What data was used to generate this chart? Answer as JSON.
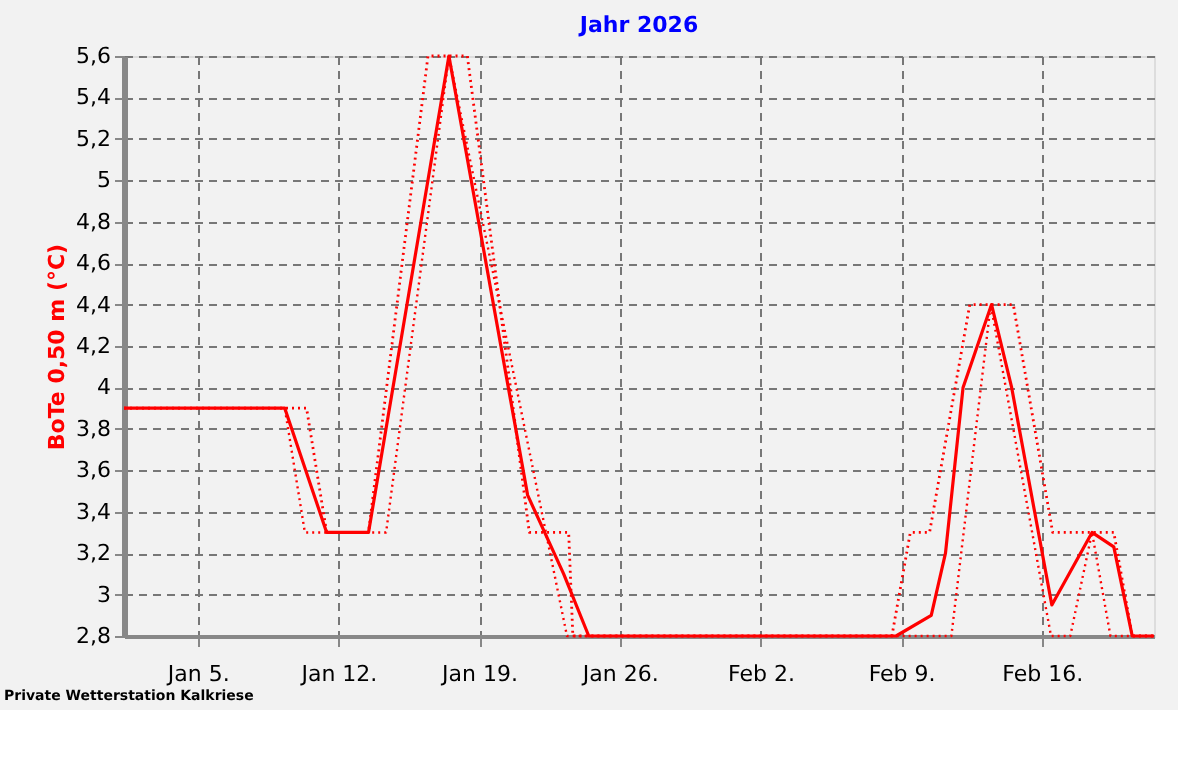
{
  "chart_data": {
    "type": "line",
    "title": "Jahr 2026",
    "ylabel": "BoTe 0,50 m (°C)",
    "annotations": [
      "Private Wetterstation Kalkriese"
    ],
    "series": [
      {
        "color": "#ff0000",
        "line_style": "solid",
        "x": [
          "2026-01-01T08:00",
          "2026-01-09T08:00",
          "2026-01-11T10:00",
          "2026-01-13T12:00",
          "2026-01-17T12:00",
          "2026-01-21T10:00",
          "2026-01-23T05:00",
          "2026-01-24T11:00",
          "2026-02-08T18:00",
          "2026-02-10T12:00",
          "2026-02-11T05:00",
          "2026-02-12T02:00",
          "2026-02-13T12:00",
          "2026-02-14T12:00",
          "2026-02-16T12:00",
          "2026-02-18T12:00",
          "2026-02-19T14:00",
          "2026-02-20T12:00",
          "2026-02-21T14:00"
        ],
        "values": [
          3.9,
          3.9,
          3.3,
          3.3,
          5.6,
          3.48,
          3.1,
          2.8,
          2.8,
          2.9,
          3.2,
          4.0,
          4.4,
          4.0,
          2.95,
          3.3,
          3.23,
          2.8,
          2.8
        ]
      },
      {
        "color": "#ff0000",
        "line_style": "dotted",
        "x": [
          "2026-01-01T08:00",
          "2026-01-10T10:00",
          "2026-01-11T10:00",
          "2026-01-13T12:00",
          "2026-01-16T11:00",
          "2026-01-18T10:00",
          "2026-01-21T12:00",
          "2026-01-23T11:00",
          "2026-01-23T16:00",
          "2026-02-08T13:00",
          "2026-02-09T11:00",
          "2026-02-10T10:00",
          "2026-02-12T10:00",
          "2026-02-14T14:00",
          "2026-02-16T13:00",
          "2026-02-19T14:00",
          "2026-02-20T12:00",
          "2026-02-21T14:00"
        ],
        "values": [
          3.9,
          3.9,
          3.3,
          3.3,
          5.6,
          5.6,
          3.3,
          3.3,
          2.8,
          2.8,
          3.3,
          3.3,
          4.4,
          4.4,
          3.3,
          3.3,
          2.8,
          2.8
        ]
      },
      {
        "color": "#ff0000",
        "line_style": "dotted",
        "x": [
          "2026-01-01T08:00",
          "2026-01-09T08:00",
          "2026-01-10T08:00",
          "2026-01-14T09:00",
          "2026-01-17T12:00",
          "2026-01-23T09:00",
          "2026-02-11T12:00",
          "2026-02-13T11:00",
          "2026-02-16T11:00",
          "2026-02-17T10:00",
          "2026-02-18T12:00",
          "2026-02-19T10:00",
          "2026-02-21T14:00"
        ],
        "values": [
          3.9,
          3.9,
          3.3,
          3.3,
          5.6,
          2.8,
          2.8,
          4.4,
          2.8,
          2.8,
          3.3,
          2.8,
          2.8
        ]
      }
    ],
    "xlim": [
      "2026-01-01T08:00",
      "2026-02-21T14:00"
    ],
    "xticks": [
      {
        "value": "2026-01-05",
        "label": "Jan 5."
      },
      {
        "value": "2026-01-12",
        "label": "Jan 12."
      },
      {
        "value": "2026-01-19",
        "label": "Jan 19."
      },
      {
        "value": "2026-01-26",
        "label": "Jan 26."
      },
      {
        "value": "2026-02-02",
        "label": "Feb 2."
      },
      {
        "value": "2026-02-09",
        "label": "Feb 9."
      },
      {
        "value": "2026-02-16",
        "label": "Feb 16."
      }
    ],
    "ylim": [
      2.8,
      5.6
    ],
    "yticks": [
      {
        "value": 2.8,
        "label": "2,8"
      },
      {
        "value": 3,
        "label": "3"
      },
      {
        "value": 3.2,
        "label": "3,2"
      },
      {
        "value": 3.4,
        "label": "3,4"
      },
      {
        "value": 3.6,
        "label": "3,6"
      },
      {
        "value": 3.8,
        "label": "3,8"
      },
      {
        "value": 4,
        "label": "4"
      },
      {
        "value": 4.2,
        "label": "4,2"
      },
      {
        "value": 4.4,
        "label": "4,4"
      },
      {
        "value": 4.6,
        "label": "4,6"
      },
      {
        "value": 4.8,
        "label": "4,8"
      },
      {
        "value": 5,
        "label": "5"
      },
      {
        "value": 5.2,
        "label": "5,2"
      },
      {
        "value": 5.4,
        "label": "5,4"
      },
      {
        "value": 5.6,
        "label": "5,6"
      }
    ],
    "grid": true,
    "legend": false,
    "marker": "none"
  }
}
